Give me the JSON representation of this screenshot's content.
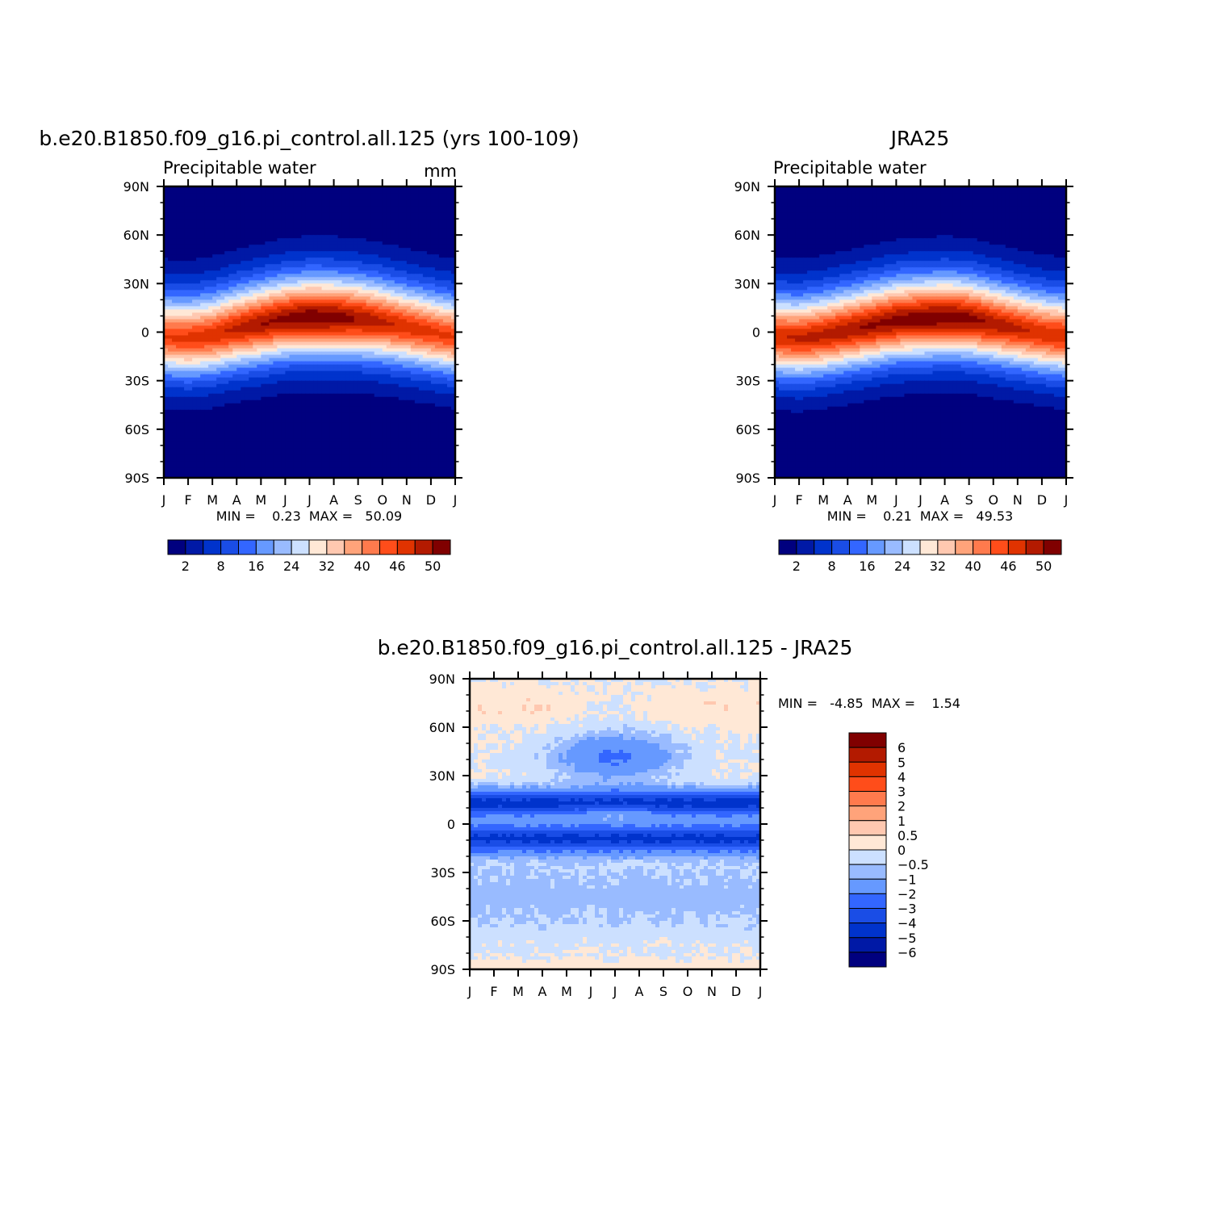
{
  "chart_data": [
    {
      "type": "heatmap",
      "title": "b.e20.B1850.f09_g16.pi_control.all.125 (yrs 100-109)",
      "subtitle": "Precipitable water",
      "units": "mm",
      "x_ticks": [
        "J",
        "F",
        "M",
        "A",
        "M",
        "J",
        "J",
        "A",
        "S",
        "O",
        "N",
        "D",
        "J"
      ],
      "y_ticks": [
        "90N",
        "60N",
        "30N",
        "0",
        "30S",
        "60S",
        "90S"
      ],
      "y_range": [
        -90,
        90
      ],
      "stats": "MIN =    0.23  MAX =   50.09",
      "min": 0.23,
      "max": 50.09,
      "equator_peak_by_month": [
        41,
        42,
        43,
        45,
        47,
        48,
        50,
        49,
        47,
        45,
        43,
        42,
        41
      ],
      "peak_latitude_by_month": [
        -3,
        -4,
        -2,
        2,
        5,
        8,
        9,
        9,
        8,
        6,
        3,
        0,
        -3
      ],
      "colorbar": {
        "labels": [
          "2",
          "8",
          "16",
          "24",
          "32",
          "40",
          "46",
          "50"
        ],
        "colors": [
          "#00007f",
          "#0019a6",
          "#0033cc",
          "#1a4de6",
          "#3366ff",
          "#6699ff",
          "#99bbff",
          "#cce0ff",
          "#ffe8d6",
          "#ffc8b0",
          "#ffa37a",
          "#ff7a4d",
          "#ff4d1a",
          "#e03300",
          "#b31a00",
          "#800000"
        ]
      }
    },
    {
      "type": "heatmap",
      "title": "JRA25",
      "subtitle": "Precipitable water",
      "x_ticks": [
        "J",
        "F",
        "M",
        "A",
        "M",
        "J",
        "J",
        "A",
        "S",
        "O",
        "N",
        "D",
        "J"
      ],
      "y_ticks": [
        "90N",
        "60N",
        "30N",
        "0",
        "30S",
        "60S",
        "90S"
      ],
      "y_range": [
        -90,
        90
      ],
      "stats": "MIN =    0.21  MAX =   49.53",
      "min": 0.21,
      "max": 49.53,
      "equator_peak_by_month": [
        43,
        44,
        45,
        46,
        47,
        48,
        49,
        49,
        48,
        46,
        44,
        43,
        43
      ],
      "peak_latitude_by_month": [
        -3,
        -4,
        -2,
        1,
        4,
        7,
        8,
        9,
        8,
        5,
        2,
        -1,
        -3
      ],
      "colorbar": {
        "labels": [
          "2",
          "8",
          "16",
          "24",
          "32",
          "40",
          "46",
          "50"
        ],
        "colors": [
          "#00007f",
          "#0019a6",
          "#0033cc",
          "#1a4de6",
          "#3366ff",
          "#6699ff",
          "#99bbff",
          "#cce0ff",
          "#ffe8d6",
          "#ffc8b0",
          "#ffa37a",
          "#ff7a4d",
          "#ff4d1a",
          "#e03300",
          "#b31a00",
          "#800000"
        ]
      }
    },
    {
      "type": "heatmap",
      "title": "b.e20.B1850.f09_g16.pi_control.all.125 - JRA25",
      "x_ticks": [
        "J",
        "F",
        "M",
        "A",
        "M",
        "J",
        "J",
        "A",
        "S",
        "O",
        "N",
        "D",
        "J"
      ],
      "y_ticks": [
        "90N",
        "60N",
        "30N",
        "0",
        "30S",
        "60S",
        "90S"
      ],
      "y_range": [
        -90,
        90
      ],
      "stats": "MIN =   -4.85  MAX =    1.54",
      "min": -4.85,
      "max": 1.54,
      "colorbar": {
        "levels": [
          -6,
          -5,
          -4,
          -3,
          -2,
          -1,
          -0.5,
          0,
          0.5,
          1,
          2,
          3,
          4,
          5,
          6
        ],
        "labels": [
          "6",
          "5",
          "4",
          "3",
          "2",
          "1",
          "0.5",
          "0",
          "−0.5",
          "−1",
          "−2",
          "−3",
          "−4",
          "−5",
          "−6"
        ],
        "colors": [
          "#00007f",
          "#0019a6",
          "#0033cc",
          "#1a4de6",
          "#3366ff",
          "#6699ff",
          "#99bbff",
          "#cce0ff",
          "#ffe8d6",
          "#ffc8b0",
          "#ffa37a",
          "#ff7a4d",
          "#ff4d1a",
          "#e03300",
          "#b31a00",
          "#800000"
        ]
      }
    }
  ]
}
